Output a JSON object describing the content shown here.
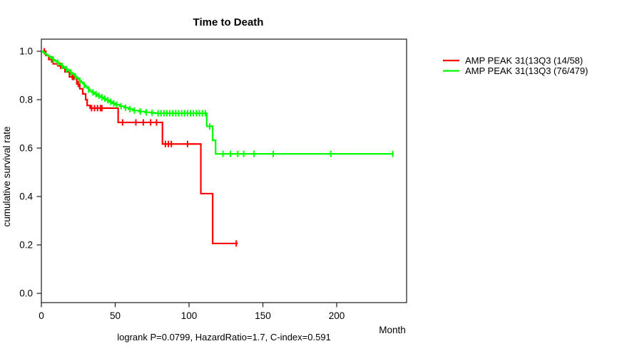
{
  "title": "Time to Death",
  "annotation": "logrank P=0.0799, HazardRatio=1.7, C-index=0.591",
  "axes": {
    "x_label": "Month",
    "y_label": "cumulative survival rate",
    "x_ticks": [
      0,
      50,
      100,
      150,
      200
    ],
    "y_ticks": [
      0.0,
      0.2,
      0.4,
      0.6,
      0.8,
      1.0
    ],
    "x_range": [
      0,
      247
    ],
    "y_range": [
      0.0,
      1.0
    ]
  },
  "legend": {
    "position": "right",
    "items": [
      {
        "label": "AMP PEAK 31(13Q3 (14/58)",
        "color": "#ff0000"
      },
      {
        "label": "AMP PEAK 31(13Q3 (76/479)",
        "color": "#00ff00"
      }
    ]
  },
  "colors": {
    "series_red": "#ff0000",
    "series_green": "#00ff00",
    "axis": "#000000",
    "background": "#ffffff"
  },
  "chart_data": {
    "type": "line",
    "subtype": "kaplan-meier-step",
    "title": "Time to Death",
    "xlabel": "Month",
    "ylabel": "cumulative survival rate",
    "xlim": [
      0,
      247
    ],
    "ylim": [
      0.0,
      1.0
    ],
    "grid": false,
    "legend_position": "right-outside",
    "series": [
      {
        "name": "AMP PEAK 31(13Q3 (14/58)",
        "color": "#ff0000",
        "events_total": "14/58",
        "end_month": 133,
        "steps": [
          [
            0,
            1.0
          ],
          [
            3,
            0.983
          ],
          [
            5,
            0.966
          ],
          [
            8,
            0.948
          ],
          [
            11,
            0.94
          ],
          [
            14,
            0.931
          ],
          [
            16,
            0.915
          ],
          [
            19,
            0.894
          ],
          [
            24,
            0.865
          ],
          [
            26,
            0.845
          ],
          [
            28,
            0.824
          ],
          [
            30,
            0.8
          ],
          [
            31,
            0.776
          ],
          [
            33,
            0.765
          ],
          [
            52,
            0.706
          ],
          [
            82,
            0.617
          ],
          [
            108,
            0.412
          ],
          [
            116,
            0.206
          ]
        ],
        "censors": [
          [
            2,
            1.0
          ],
          [
            7,
            0.966
          ],
          [
            13,
            0.94
          ],
          [
            21,
            0.894
          ],
          [
            22,
            0.894
          ],
          [
            25,
            0.865
          ],
          [
            34,
            0.765
          ],
          [
            36,
            0.765
          ],
          [
            38,
            0.765
          ],
          [
            40,
            0.765
          ],
          [
            41,
            0.765
          ],
          [
            55,
            0.706
          ],
          [
            64,
            0.706
          ],
          [
            69,
            0.706
          ],
          [
            74,
            0.706
          ],
          [
            78,
            0.706
          ],
          [
            84,
            0.617
          ],
          [
            86,
            0.617
          ],
          [
            88,
            0.617
          ],
          [
            99,
            0.617
          ],
          [
            132,
            0.206
          ]
        ]
      },
      {
        "name": "AMP PEAK 31(13Q3 (76/479)",
        "color": "#00ff00",
        "events_total": "76/479",
        "end_month": 238,
        "steps": [
          [
            0,
            1.0
          ],
          [
            1,
            0.996
          ],
          [
            2,
            0.992
          ],
          [
            3,
            0.987
          ],
          [
            4,
            0.983
          ],
          [
            5,
            0.979
          ],
          [
            6,
            0.974
          ],
          [
            7,
            0.97
          ],
          [
            8,
            0.966
          ],
          [
            9,
            0.961
          ],
          [
            10,
            0.957
          ],
          [
            11,
            0.953
          ],
          [
            12,
            0.948
          ],
          [
            13,
            0.944
          ],
          [
            14,
            0.94
          ],
          [
            15,
            0.935
          ],
          [
            16,
            0.931
          ],
          [
            17,
            0.926
          ],
          [
            18,
            0.922
          ],
          [
            19,
            0.917
          ],
          [
            20,
            0.912
          ],
          [
            21,
            0.907
          ],
          [
            22,
            0.901
          ],
          [
            23,
            0.896
          ],
          [
            24,
            0.89
          ],
          [
            25,
            0.884
          ],
          [
            26,
            0.878
          ],
          [
            27,
            0.872
          ],
          [
            28,
            0.866
          ],
          [
            29,
            0.86
          ],
          [
            30,
            0.854
          ],
          [
            31,
            0.848
          ],
          [
            32,
            0.842
          ],
          [
            33,
            0.836
          ],
          [
            34,
            0.83
          ],
          [
            36,
            0.823
          ],
          [
            38,
            0.816
          ],
          [
            40,
            0.81
          ],
          [
            42,
            0.804
          ],
          [
            44,
            0.798
          ],
          [
            46,
            0.791
          ],
          [
            48,
            0.785
          ],
          [
            50,
            0.779
          ],
          [
            53,
            0.773
          ],
          [
            56,
            0.767
          ],
          [
            59,
            0.761
          ],
          [
            62,
            0.755
          ],
          [
            66,
            0.751
          ],
          [
            70,
            0.748
          ],
          [
            74,
            0.746
          ],
          [
            77,
            0.744
          ],
          [
            112,
            0.69
          ],
          [
            116,
            0.632
          ],
          [
            118,
            0.576
          ]
        ],
        "censors": [
          [
            8,
            0.966
          ],
          [
            11,
            0.953
          ],
          [
            14,
            0.94
          ],
          [
            17,
            0.926
          ],
          [
            20,
            0.912
          ],
          [
            23,
            0.896
          ],
          [
            26,
            0.878
          ],
          [
            29,
            0.86
          ],
          [
            32,
            0.842
          ],
          [
            35,
            0.83
          ],
          [
            37,
            0.823
          ],
          [
            39,
            0.816
          ],
          [
            41,
            0.81
          ],
          [
            43,
            0.804
          ],
          [
            45,
            0.798
          ],
          [
            47,
            0.791
          ],
          [
            49,
            0.785
          ],
          [
            51,
            0.779
          ],
          [
            54,
            0.773
          ],
          [
            57,
            0.767
          ],
          [
            60,
            0.761
          ],
          [
            63,
            0.755
          ],
          [
            67,
            0.751
          ],
          [
            71,
            0.748
          ],
          [
            75,
            0.746
          ],
          [
            79,
            0.744
          ],
          [
            81,
            0.744
          ],
          [
            83,
            0.744
          ],
          [
            85,
            0.744
          ],
          [
            87,
            0.744
          ],
          [
            89,
            0.744
          ],
          [
            91,
            0.744
          ],
          [
            93,
            0.744
          ],
          [
            95,
            0.744
          ],
          [
            97,
            0.744
          ],
          [
            99,
            0.744
          ],
          [
            101,
            0.744
          ],
          [
            103,
            0.744
          ],
          [
            105,
            0.744
          ],
          [
            107,
            0.744
          ],
          [
            109,
            0.744
          ],
          [
            111,
            0.744
          ],
          [
            114,
            0.69
          ],
          [
            123,
            0.576
          ],
          [
            128,
            0.576
          ],
          [
            133,
            0.576
          ],
          [
            137,
            0.576
          ],
          [
            144,
            0.576
          ],
          [
            157,
            0.576
          ],
          [
            196,
            0.576
          ],
          [
            238,
            0.576
          ]
        ]
      }
    ]
  }
}
